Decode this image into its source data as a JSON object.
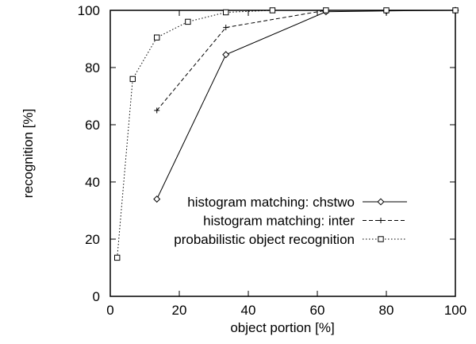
{
  "chart_data": {
    "type": "line",
    "xlabel": "object portion [%]",
    "ylabel": "recognition [%]",
    "xlim": [
      0,
      100
    ],
    "ylim": [
      0,
      100
    ],
    "xticks": [
      "0",
      "20",
      "40",
      "60",
      "80",
      "100"
    ],
    "yticks": [
      "0",
      "20",
      "40",
      "60",
      "80",
      "100"
    ],
    "grid": false,
    "legend_position": "bottom-right",
    "series": [
      {
        "name": "histogram matching: chstwo",
        "marker": "diamond",
        "line_style": "solid",
        "x": [
          13.5,
          33.5,
          62.5,
          80,
          100
        ],
        "y": [
          34,
          84.5,
          99.5,
          99.8,
          100
        ]
      },
      {
        "name": "histogram matching: inter",
        "marker": "plus",
        "line_style": "dashed",
        "x": [
          13.5,
          33.5,
          62.5,
          80,
          100
        ],
        "y": [
          65,
          94,
          100,
          100,
          100
        ]
      },
      {
        "name": "probabilistic object recognition",
        "marker": "square",
        "line_style": "dotted",
        "x": [
          2,
          6.5,
          13.5,
          22.5,
          33.5,
          47,
          62.5,
          80,
          100
        ],
        "y": [
          13.5,
          76,
          90.5,
          96,
          99.3,
          100,
          100,
          100,
          100
        ]
      }
    ]
  }
}
